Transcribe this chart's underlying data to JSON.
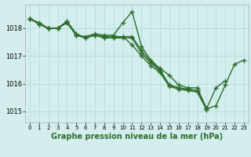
{
  "background_color": "#d4eeee",
  "grid_color": "#b8dede",
  "line_color": "#2d6e2d",
  "line_width": 1.0,
  "marker": "+",
  "marker_size": 4,
  "marker_edge_width": 1.0,
  "title": "Graphe pression niveau de la mer (hPa)",
  "title_fontsize": 7.0,
  "ylabel_ticks": [
    1015,
    1016,
    1017,
    1018
  ],
  "ylabel_fontsize": 6.0,
  "xtick_fontsize": 5.0,
  "xlim": [
    -0.5,
    23.5
  ],
  "ylim": [
    1014.6,
    1018.85
  ],
  "xticks": [
    0,
    1,
    2,
    3,
    4,
    5,
    6,
    7,
    8,
    9,
    10,
    11,
    12,
    13,
    14,
    15,
    16,
    17,
    18,
    19,
    20,
    21,
    22,
    23
  ],
  "lines": [
    [
      1018.35,
      1018.2,
      1018.0,
      1018.0,
      1018.25,
      1017.75,
      1017.7,
      1017.8,
      1017.75,
      1017.75,
      1018.2,
      1018.6,
      1017.35,
      1016.85,
      1016.55,
      1016.3,
      1015.95,
      1015.85,
      1015.85,
      1015.1,
      1015.2,
      1015.95,
      1016.7,
      1016.85
    ],
    [
      1018.35,
      1018.15,
      1018.0,
      1018.0,
      1018.25,
      1017.8,
      1017.65,
      1017.75,
      1017.7,
      1017.7,
      1017.7,
      1017.7,
      1017.2,
      1016.8,
      1016.5,
      1015.95,
      1015.85,
      1015.8,
      1015.75,
      1015.1,
      1015.85,
      1016.1,
      null,
      null
    ],
    [
      1018.35,
      1018.15,
      1018.0,
      1018.0,
      1018.2,
      1017.75,
      1017.65,
      1017.75,
      1017.65,
      1017.65,
      1017.65,
      1017.65,
      1017.1,
      1016.75,
      1016.45,
      1015.95,
      1015.85,
      1015.8,
      1015.75,
      1015.1,
      null,
      null,
      null,
      null
    ],
    [
      1018.35,
      1018.15,
      1018.0,
      1018.0,
      1018.2,
      1017.75,
      1017.65,
      1017.75,
      1017.65,
      1017.65,
      1017.7,
      1017.4,
      1017.0,
      1016.65,
      1016.4,
      1015.9,
      1015.8,
      1015.75,
      1015.7,
      1015.05,
      null,
      null,
      null,
      null
    ]
  ]
}
